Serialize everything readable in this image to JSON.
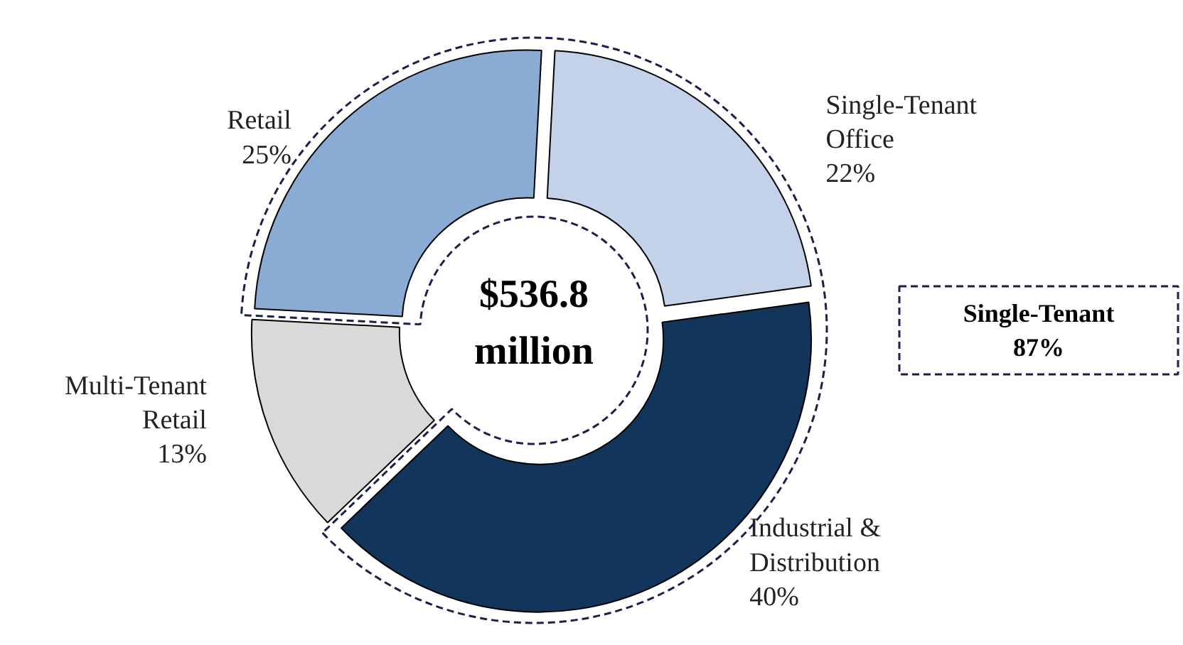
{
  "chart_data": {
    "type": "donut",
    "categories": [
      "Single-Tenant Office",
      "Industrial & Distribution",
      "Multi-Tenant Retail",
      "Retail"
    ],
    "values": [
      22,
      40,
      13,
      25
    ],
    "value_labels": [
      "22%",
      "40%",
      "13%",
      "25%"
    ],
    "colors": [
      "#c3d2e8",
      "#12355b",
      "#d9d9d9",
      "#8aabd4"
    ],
    "annotations": [
      "$536.8 million",
      "Single-Tenant 87%"
    ]
  }
}
